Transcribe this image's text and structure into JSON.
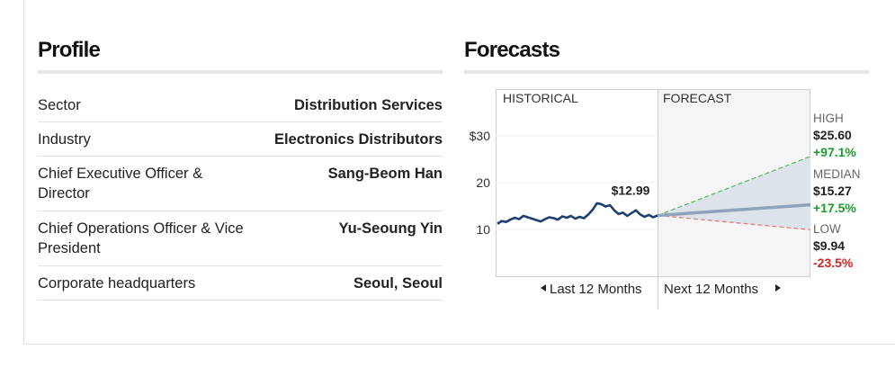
{
  "profile": {
    "title": "Profile",
    "rows": [
      {
        "label": "Sector",
        "value": "Distribution Services"
      },
      {
        "label": "Industry",
        "value": "Electronics Distributors"
      },
      {
        "label": "Chief Executive Officer & Director",
        "value": "Sang-Beom Han"
      },
      {
        "label": "Chief Operations Officer & Vice President",
        "value": "Yu-Seoung Yin"
      },
      {
        "label": "Corporate headquarters",
        "value": "Seoul, Seoul"
      }
    ]
  },
  "forecasts": {
    "title": "Forecasts",
    "section_historical": "HISTORICAL",
    "section_forecast": "FORECAST",
    "nav_prev": "Last 12 Months",
    "nav_next": "Next 12 Months"
  },
  "chart_data": {
    "type": "line",
    "y_ticks": [
      "$30",
      "20",
      "10"
    ],
    "y_tick_values": [
      30,
      20,
      10
    ],
    "ylim": [
      0,
      40
    ],
    "current_price_label": "$12.99",
    "current_price": 12.99,
    "historical_prices": [
      11.2,
      11.8,
      11.6,
      12.1,
      12.5,
      12.2,
      12.9,
      12.6,
      12.3,
      12.0,
      11.7,
      12.2,
      12.6,
      12.4,
      12.1,
      12.8,
      12.5,
      12.9,
      12.3,
      12.7,
      12.4,
      13.2,
      14.2,
      15.6,
      15.4,
      14.9,
      15.2,
      14.1,
      13.3,
      13.6,
      12.9,
      13.5,
      14.1,
      13.2,
      12.7,
      13.1,
      12.6,
      12.99
    ],
    "forecasts": [
      {
        "name": "HIGH",
        "price_label": "$25.60",
        "change_label": "+97.1%",
        "value": 25.6,
        "color": "#1a9c2d"
      },
      {
        "name": "MEDIAN",
        "price_label": "$15.27",
        "change_label": "+17.5%",
        "value": 15.27,
        "color": "#1a9c2d"
      },
      {
        "name": "LOW",
        "price_label": "$9.94",
        "change_label": "-23.5%",
        "value": 9.94,
        "color": "#d9231f"
      }
    ],
    "colors": {
      "history_line": "#1f3f70",
      "median_line": "#8ea3bc",
      "high_line": "#59b55c",
      "low_line": "#e07676",
      "band_fill": "#dde3ea"
    }
  }
}
